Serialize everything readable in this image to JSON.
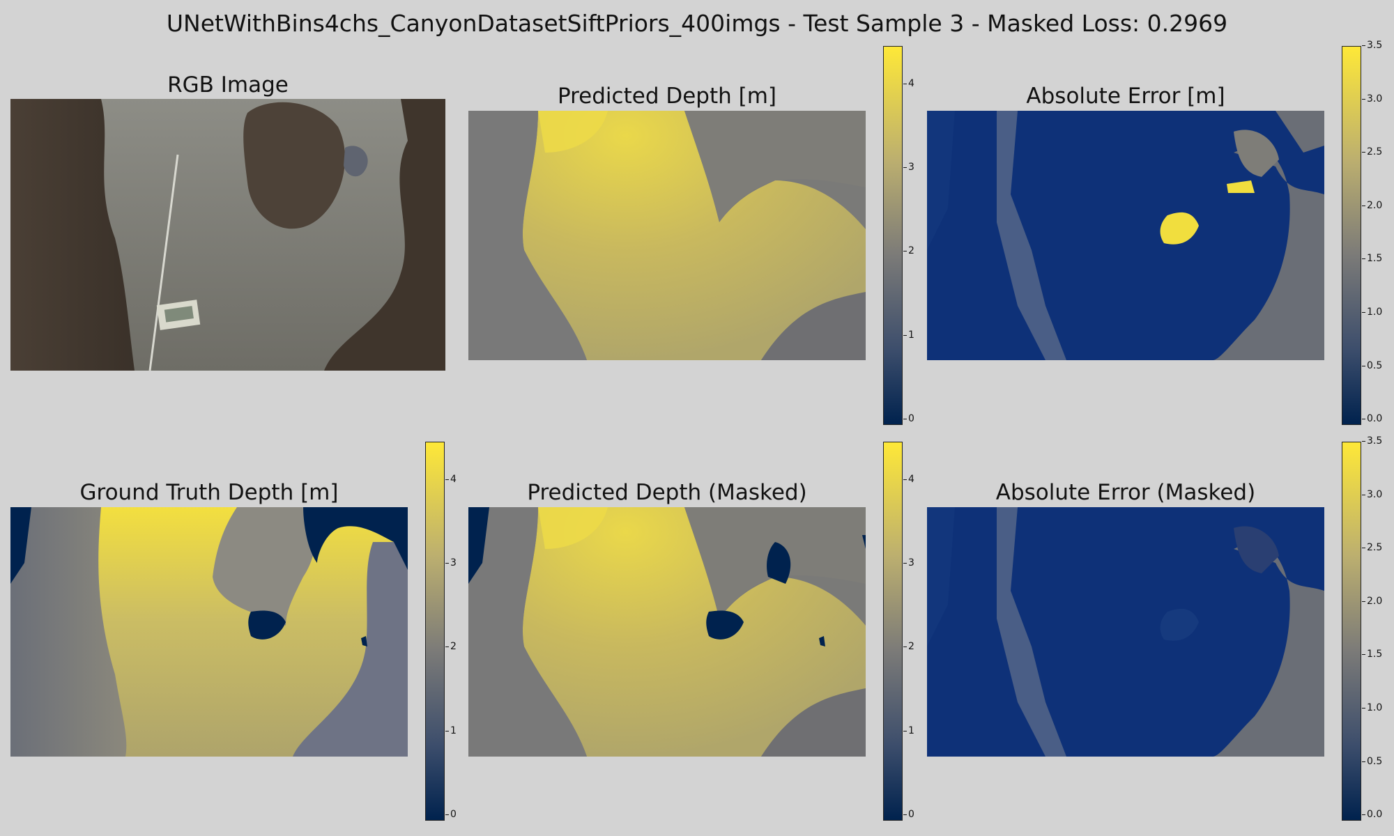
{
  "suptitle": "UNetWithBins4chs_CanyonDatasetSiftPriors_400imgs - Test Sample 3 - Masked Loss: 0.2969",
  "panels": {
    "rgb": {
      "title": "RGB Image"
    },
    "pred": {
      "title": "Predicted Depth [m]"
    },
    "err": {
      "title": "Absolute Error [m]"
    },
    "gt": {
      "title": "Ground Truth Depth [m]"
    },
    "pred_masked": {
      "title": "Predicted Depth (Masked)"
    },
    "err_masked": {
      "title": "Absolute Error (Masked)"
    }
  },
  "colors": {
    "colormap": "cividis",
    "cmap_low": "#00224e",
    "cmap_mid": "#7c7b78",
    "cmap_high": "#fee838",
    "background": "#d3d3d3"
  },
  "chart_data": [
    {
      "type": "heatmap",
      "title": "Predicted Depth [m]",
      "colorbar": {
        "min": 0,
        "max": 4.5,
        "ticks": [
          "0",
          "1",
          "2",
          "3",
          "4"
        ]
      }
    },
    {
      "type": "heatmap",
      "title": "Absolute Error [m]",
      "colorbar": {
        "min": 0,
        "max": 3.55,
        "ticks": [
          "0.0",
          "0.5",
          "1.0",
          "1.5",
          "2.0",
          "2.5",
          "3.0",
          "3.5"
        ]
      }
    },
    {
      "type": "heatmap",
      "title": "Ground Truth Depth [m]",
      "colorbar": {
        "min": 0,
        "max": 4.5,
        "ticks": [
          "0",
          "1",
          "2",
          "3",
          "4"
        ]
      }
    },
    {
      "type": "heatmap",
      "title": "Predicted Depth (Masked)",
      "colorbar": {
        "min": 0,
        "max": 4.5,
        "ticks": [
          "0",
          "1",
          "2",
          "3",
          "4"
        ]
      }
    },
    {
      "type": "heatmap",
      "title": "Absolute Error (Masked)",
      "colorbar": {
        "min": 0,
        "max": 3.55,
        "ticks": [
          "0.0",
          "0.5",
          "1.0",
          "1.5",
          "2.0",
          "2.5",
          "3.0",
          "3.5"
        ]
      }
    }
  ]
}
